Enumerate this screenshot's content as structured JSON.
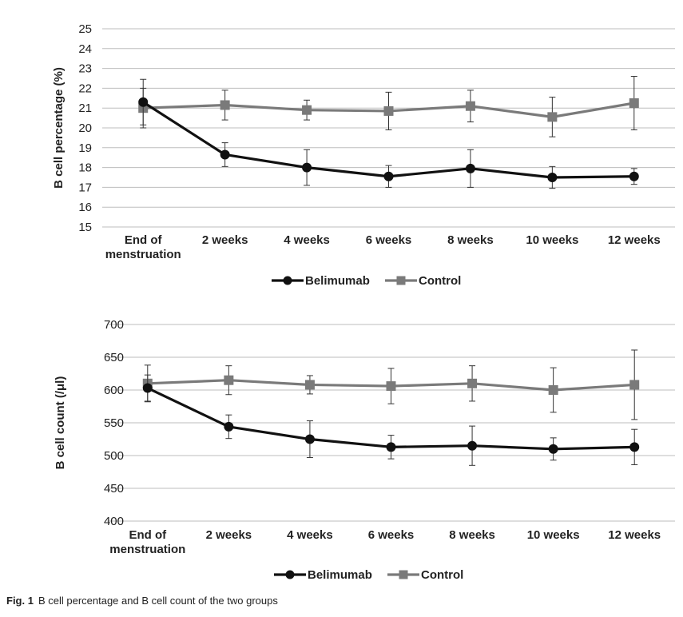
{
  "chart_data": [
    {
      "type": "line",
      "ylabel": "B cell percentage (%)",
      "xlabel": "",
      "categories": [
        "End of menstruation",
        "2 weeks",
        "4 weeks",
        "6 weeks",
        "8 weeks",
        "10 weeks",
        "12 weeks"
      ],
      "category_lines": [
        [
          "End of",
          "menstruation"
        ],
        [
          "2 weeks"
        ],
        [
          "4 weeks"
        ],
        [
          "6 weeks"
        ],
        [
          "8 weeks"
        ],
        [
          "10 weeks"
        ],
        [
          "12 weeks"
        ]
      ],
      "ylim": [
        15,
        25
      ],
      "yticks": [
        15,
        16,
        17,
        18,
        19,
        20,
        21,
        22,
        23,
        24,
        25
      ],
      "grid": true,
      "legend": "bottom",
      "series": [
        {
          "name": "Belimumab",
          "color": "#111111",
          "marker": "circle",
          "values": [
            21.3,
            18.65,
            18.0,
            17.55,
            17.95,
            17.5,
            17.55
          ],
          "errors": [
            1.15,
            0.6,
            0.9,
            0.55,
            0.95,
            0.55,
            0.4
          ]
        },
        {
          "name": "Control",
          "color": "#7a7a7a",
          "marker": "square",
          "values": [
            21.0,
            21.15,
            20.9,
            20.85,
            21.1,
            20.55,
            21.25
          ],
          "errors": [
            1.0,
            0.75,
            0.5,
            0.95,
            0.8,
            1.0,
            1.35
          ]
        }
      ]
    },
    {
      "type": "line",
      "ylabel": "B cell count (/μl)",
      "xlabel": "",
      "categories": [
        "End of menstruation",
        "2 weeks",
        "4 weeks",
        "6 weeks",
        "8 weeks",
        "10 weeks",
        "12 weeks"
      ],
      "category_lines": [
        [
          "End of",
          "menstruation"
        ],
        [
          "2 weeks"
        ],
        [
          "4 weeks"
        ],
        [
          "6 weeks"
        ],
        [
          "8 weeks"
        ],
        [
          "10 weeks"
        ],
        [
          "12 weeks"
        ]
      ],
      "ylim": [
        400,
        700
      ],
      "yticks": [
        400,
        450,
        500,
        550,
        600,
        650,
        700
      ],
      "grid": true,
      "legend": "bottom",
      "series": [
        {
          "name": "Belimumab",
          "color": "#111111",
          "marker": "circle",
          "values": [
            603,
            544,
            525,
            513,
            515,
            510,
            513
          ],
          "errors": [
            20,
            18,
            28,
            18,
            30,
            17,
            27
          ]
        },
        {
          "name": "Control",
          "color": "#7a7a7a",
          "marker": "square",
          "values": [
            610,
            615,
            608,
            606,
            610,
            600,
            608
          ],
          "errors": [
            28,
            22,
            14,
            27,
            27,
            34,
            53
          ]
        }
      ]
    }
  ],
  "caption": {
    "label": "Fig. 1",
    "text": "B cell percentage and B cell count of the two groups"
  }
}
